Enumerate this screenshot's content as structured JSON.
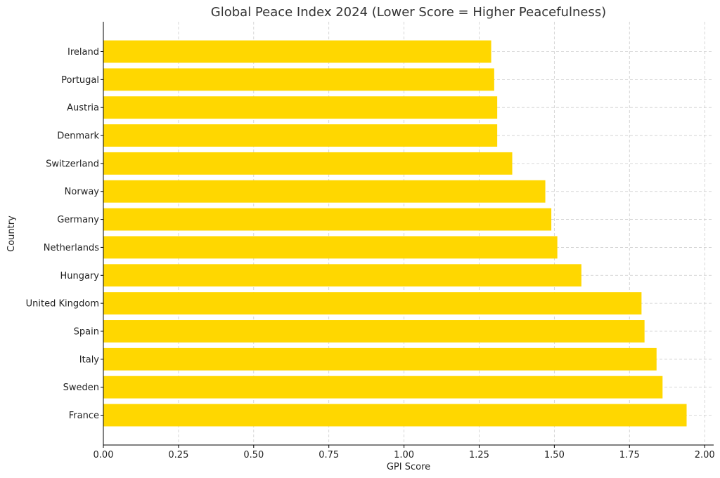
{
  "chart_data": {
    "type": "bar",
    "orientation": "horizontal",
    "title": "Global Peace Index 2024 (Lower Score = Higher Peacefulness)",
    "xlabel": "GPI Score",
    "ylabel": "Country",
    "xlim": [
      0,
      2.03
    ],
    "xticks": [
      0.0,
      0.25,
      0.5,
      0.75,
      1.0,
      1.25,
      1.5,
      1.75,
      2.0
    ],
    "xtick_labels": [
      "0.00",
      "0.25",
      "0.50",
      "0.75",
      "1.00",
      "1.25",
      "1.50",
      "1.75",
      "2.00"
    ],
    "grid": true,
    "bar_color": "#ffd700",
    "categories": [
      "Ireland",
      "Portugal",
      "Austria",
      "Denmark",
      "Switzerland",
      "Norway",
      "Germany",
      "Netherlands",
      "Hungary",
      "United Kingdom",
      "Spain",
      "Italy",
      "Sweden",
      "France"
    ],
    "values": [
      1.29,
      1.3,
      1.31,
      1.31,
      1.36,
      1.47,
      1.49,
      1.51,
      1.59,
      1.79,
      1.8,
      1.84,
      1.86,
      1.94
    ]
  }
}
